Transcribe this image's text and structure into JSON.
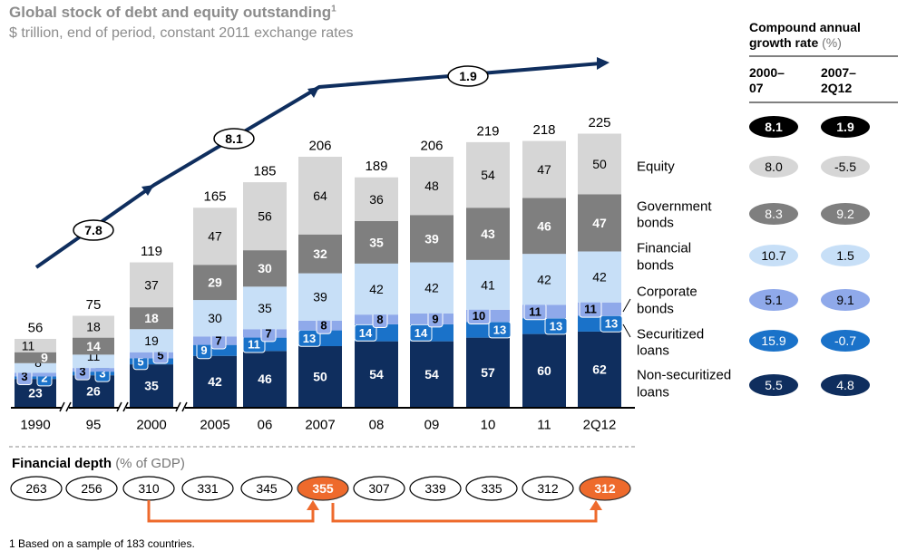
{
  "title": "Global stock of debt and equity outstanding",
  "title_sup": "1",
  "subtitle": "$ trillion, end of period, constant 2011 exchange rates",
  "footnote": "1 Based on a sample of 183 countries.",
  "colors": {
    "equity": "#d6d6d6",
    "government_bonds": "#7f7f7f",
    "financial_bonds": "#c7dff7",
    "corporate_bonds": "#8fa9ea",
    "securitized_loans": "#1a72c9",
    "non_securitized_loans": "#0f2e5e",
    "arrow": "#0f2e5e",
    "highlight": "#ee6a2c"
  },
  "chart_data": {
    "type": "bar",
    "stacked": true,
    "categories": [
      "1990",
      "95",
      "2000",
      "2005",
      "06",
      "2007",
      "08",
      "09",
      "10",
      "11",
      "2Q12"
    ],
    "series": [
      {
        "name": "Non-securitized loans",
        "values": [
          23,
          26,
          35,
          42,
          46,
          50,
          54,
          54,
          57,
          60,
          62
        ]
      },
      {
        "name": "Securitized loans",
        "values": [
          2,
          3,
          5,
          9,
          11,
          13,
          14,
          14,
          13,
          13,
          13
        ]
      },
      {
        "name": "Corporate bonds",
        "values": [
          3,
          3,
          5,
          7,
          7,
          8,
          8,
          9,
          10,
          11,
          11
        ]
      },
      {
        "name": "Financial bonds",
        "values": [
          8,
          11,
          19,
          30,
          35,
          39,
          42,
          42,
          41,
          42,
          42
        ]
      },
      {
        "name": "Government bonds",
        "values": [
          9,
          14,
          18,
          29,
          30,
          32,
          35,
          39,
          43,
          46,
          47
        ]
      },
      {
        "name": "Equity",
        "values": [
          11,
          18,
          37,
          47,
          56,
          64,
          36,
          48,
          54,
          47,
          50
        ]
      }
    ],
    "totals": [
      56,
      75,
      119,
      165,
      185,
      206,
      189,
      206,
      219,
      218,
      225
    ],
    "growth_arrow_labels": [
      "7.8",
      "8.1",
      "1.9"
    ],
    "legend": [
      "Equity",
      "Government bonds",
      "Financial bonds",
      "Corporate bonds",
      "Securitized loans",
      "Non-securitized loans"
    ],
    "cagr": {
      "title": "Compound annual growth rate",
      "unit": "(%)",
      "col1": "2000–07",
      "col1_lines": [
        "2000–",
        "07"
      ],
      "col2": "2007–2Q12",
      "col2_lines": [
        "2007–",
        "2Q12"
      ],
      "total": [
        "8.1",
        "1.9"
      ],
      "rows": [
        {
          "label": "Equity",
          "v1": "8.0",
          "v2": "-5.5"
        },
        {
          "label": "Government bonds",
          "v1": "8.3",
          "v2": "9.2"
        },
        {
          "label": "Financial bonds",
          "v1": "10.7",
          "v2": "1.5"
        },
        {
          "label": "Corporate bonds",
          "v1": "5.1",
          "v2": "9.1"
        },
        {
          "label": "Securitized loans",
          "v1": "15.9",
          "v2": "-0.7"
        },
        {
          "label": "Non-securitized loans",
          "v1": "5.5",
          "v2": "4.8"
        }
      ]
    },
    "financial_depth": {
      "title": "Financial depth",
      "unit": "(% of GDP)",
      "values": [
        "263",
        "256",
        "310",
        "331",
        "345",
        "355",
        "307",
        "339",
        "335",
        "312",
        "312"
      ],
      "highlighted": [
        "355",
        "312"
      ]
    }
  }
}
